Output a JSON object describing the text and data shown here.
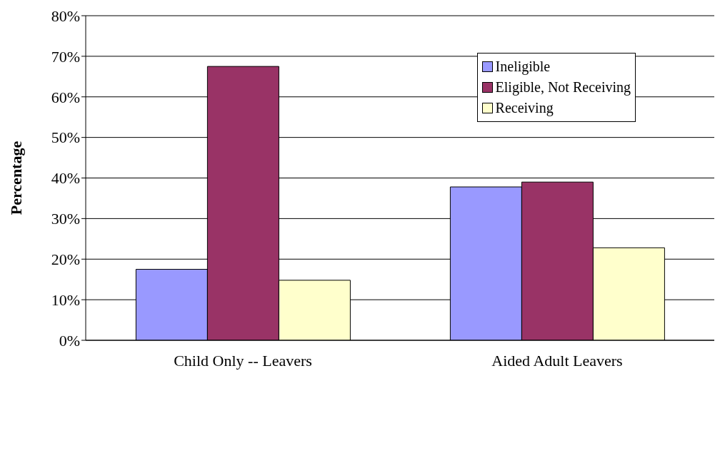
{
  "chart_data": {
    "type": "bar",
    "ylabel": "Percentage",
    "categories": [
      "Child Only -- Leavers",
      "Aided Adult Leavers"
    ],
    "series": [
      {
        "name": "Ineligible",
        "color": "#9999ff",
        "values": [
          17.5,
          37.8
        ]
      },
      {
        "name": "Eligible, Not Receiving",
        "color": "#993366",
        "values": [
          67.5,
          39.0
        ]
      },
      {
        "name": "Receiving",
        "color": "#ffffcc",
        "values": [
          14.8,
          22.8
        ]
      }
    ],
    "ylim": [
      0,
      80
    ],
    "yticks": [
      {
        "value": 0,
        "label": "0%"
      },
      {
        "value": 10,
        "label": "10%"
      },
      {
        "value": 20,
        "label": "20%"
      },
      {
        "value": 30,
        "label": "30%"
      },
      {
        "value": 40,
        "label": "40%"
      },
      {
        "value": 50,
        "label": "50%"
      },
      {
        "value": 60,
        "label": "60%"
      },
      {
        "value": 70,
        "label": "70%"
      },
      {
        "value": 80,
        "label": "80%"
      }
    ],
    "grid": "y",
    "legend": "top right"
  }
}
